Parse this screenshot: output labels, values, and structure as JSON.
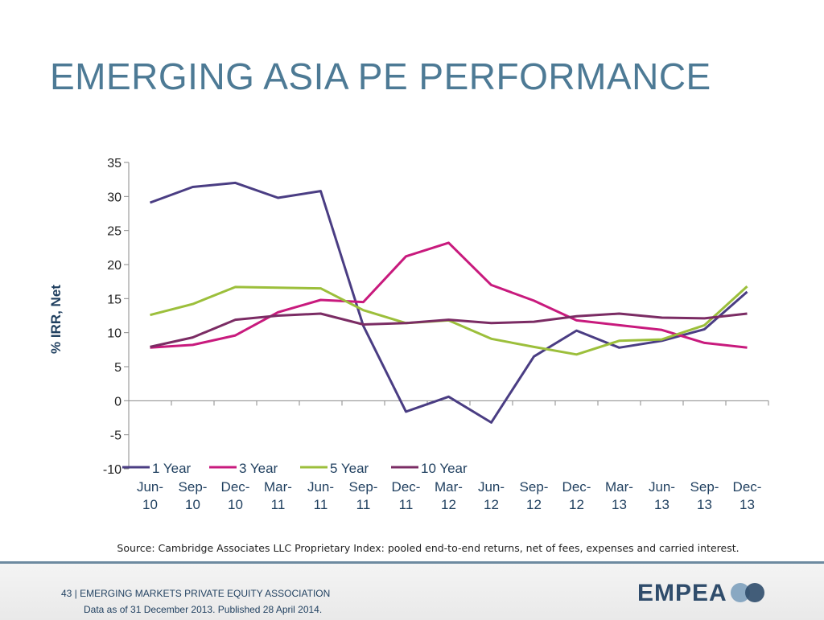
{
  "page": {
    "title": "EMERGING ASIA PE PERFORMANCE",
    "source": "Source: Cambridge Associates LLC Proprietary Index: pooled end-to-end returns, net of fees, expenses and carried interest.",
    "footer_line1": "43 | EMERGING MARKETS PRIVATE EQUITY ASSOCIATION",
    "footer_line2": "Data as of 31 December 2013. Published 28 April 2014.",
    "logo_text": "EMPEA"
  },
  "chart_data": {
    "type": "line",
    "title": "",
    "ylabel": "% IRR, Net",
    "xlabel": "",
    "ylim": [
      -10,
      35
    ],
    "yticks": [
      35,
      30,
      25,
      20,
      15,
      10,
      5,
      0,
      -5,
      -10
    ],
    "grid": false,
    "legend_position": "bottom-left",
    "categories": [
      [
        "Jun-",
        "10"
      ],
      [
        "Sep-",
        "10"
      ],
      [
        "Dec-",
        "10"
      ],
      [
        "Mar-",
        "11"
      ],
      [
        "Jun-",
        "11"
      ],
      [
        "Sep-",
        "11"
      ],
      [
        "Dec-",
        "11"
      ],
      [
        "Mar-",
        "12"
      ],
      [
        "Jun-",
        "12"
      ],
      [
        "Sep-",
        "12"
      ],
      [
        "Dec-",
        "12"
      ],
      [
        "Mar-",
        "13"
      ],
      [
        "Jun-",
        "13"
      ],
      [
        "Sep-",
        "13"
      ],
      [
        "Dec-",
        "13"
      ]
    ],
    "series": [
      {
        "name": "1 Year",
        "color": "#4a3d83",
        "values": [
          29.1,
          31.4,
          32.0,
          29.8,
          30.8,
          11.0,
          -1.6,
          0.6,
          -3.2,
          6.5,
          10.3,
          7.8,
          8.8,
          10.5,
          16.0
        ]
      },
      {
        "name": "3 Year",
        "color": "#c81a7d",
        "values": [
          7.8,
          8.2,
          9.6,
          13.0,
          14.8,
          14.5,
          21.2,
          23.2,
          17.0,
          14.7,
          11.8,
          11.1,
          10.4,
          8.5,
          7.8
        ]
      },
      {
        "name": "5 Year",
        "color": "#9cbf3b",
        "values": [
          12.6,
          14.2,
          16.7,
          16.6,
          16.5,
          13.3,
          11.4,
          11.8,
          9.1,
          7.9,
          6.8,
          8.8,
          9.0,
          11.1,
          16.8
        ]
      },
      {
        "name": "10 Year",
        "color": "#7b2c64",
        "values": [
          7.9,
          9.3,
          11.9,
          12.5,
          12.8,
          11.2,
          11.4,
          11.9,
          11.4,
          11.6,
          12.4,
          12.8,
          12.2,
          12.1,
          12.8
        ]
      }
    ]
  }
}
